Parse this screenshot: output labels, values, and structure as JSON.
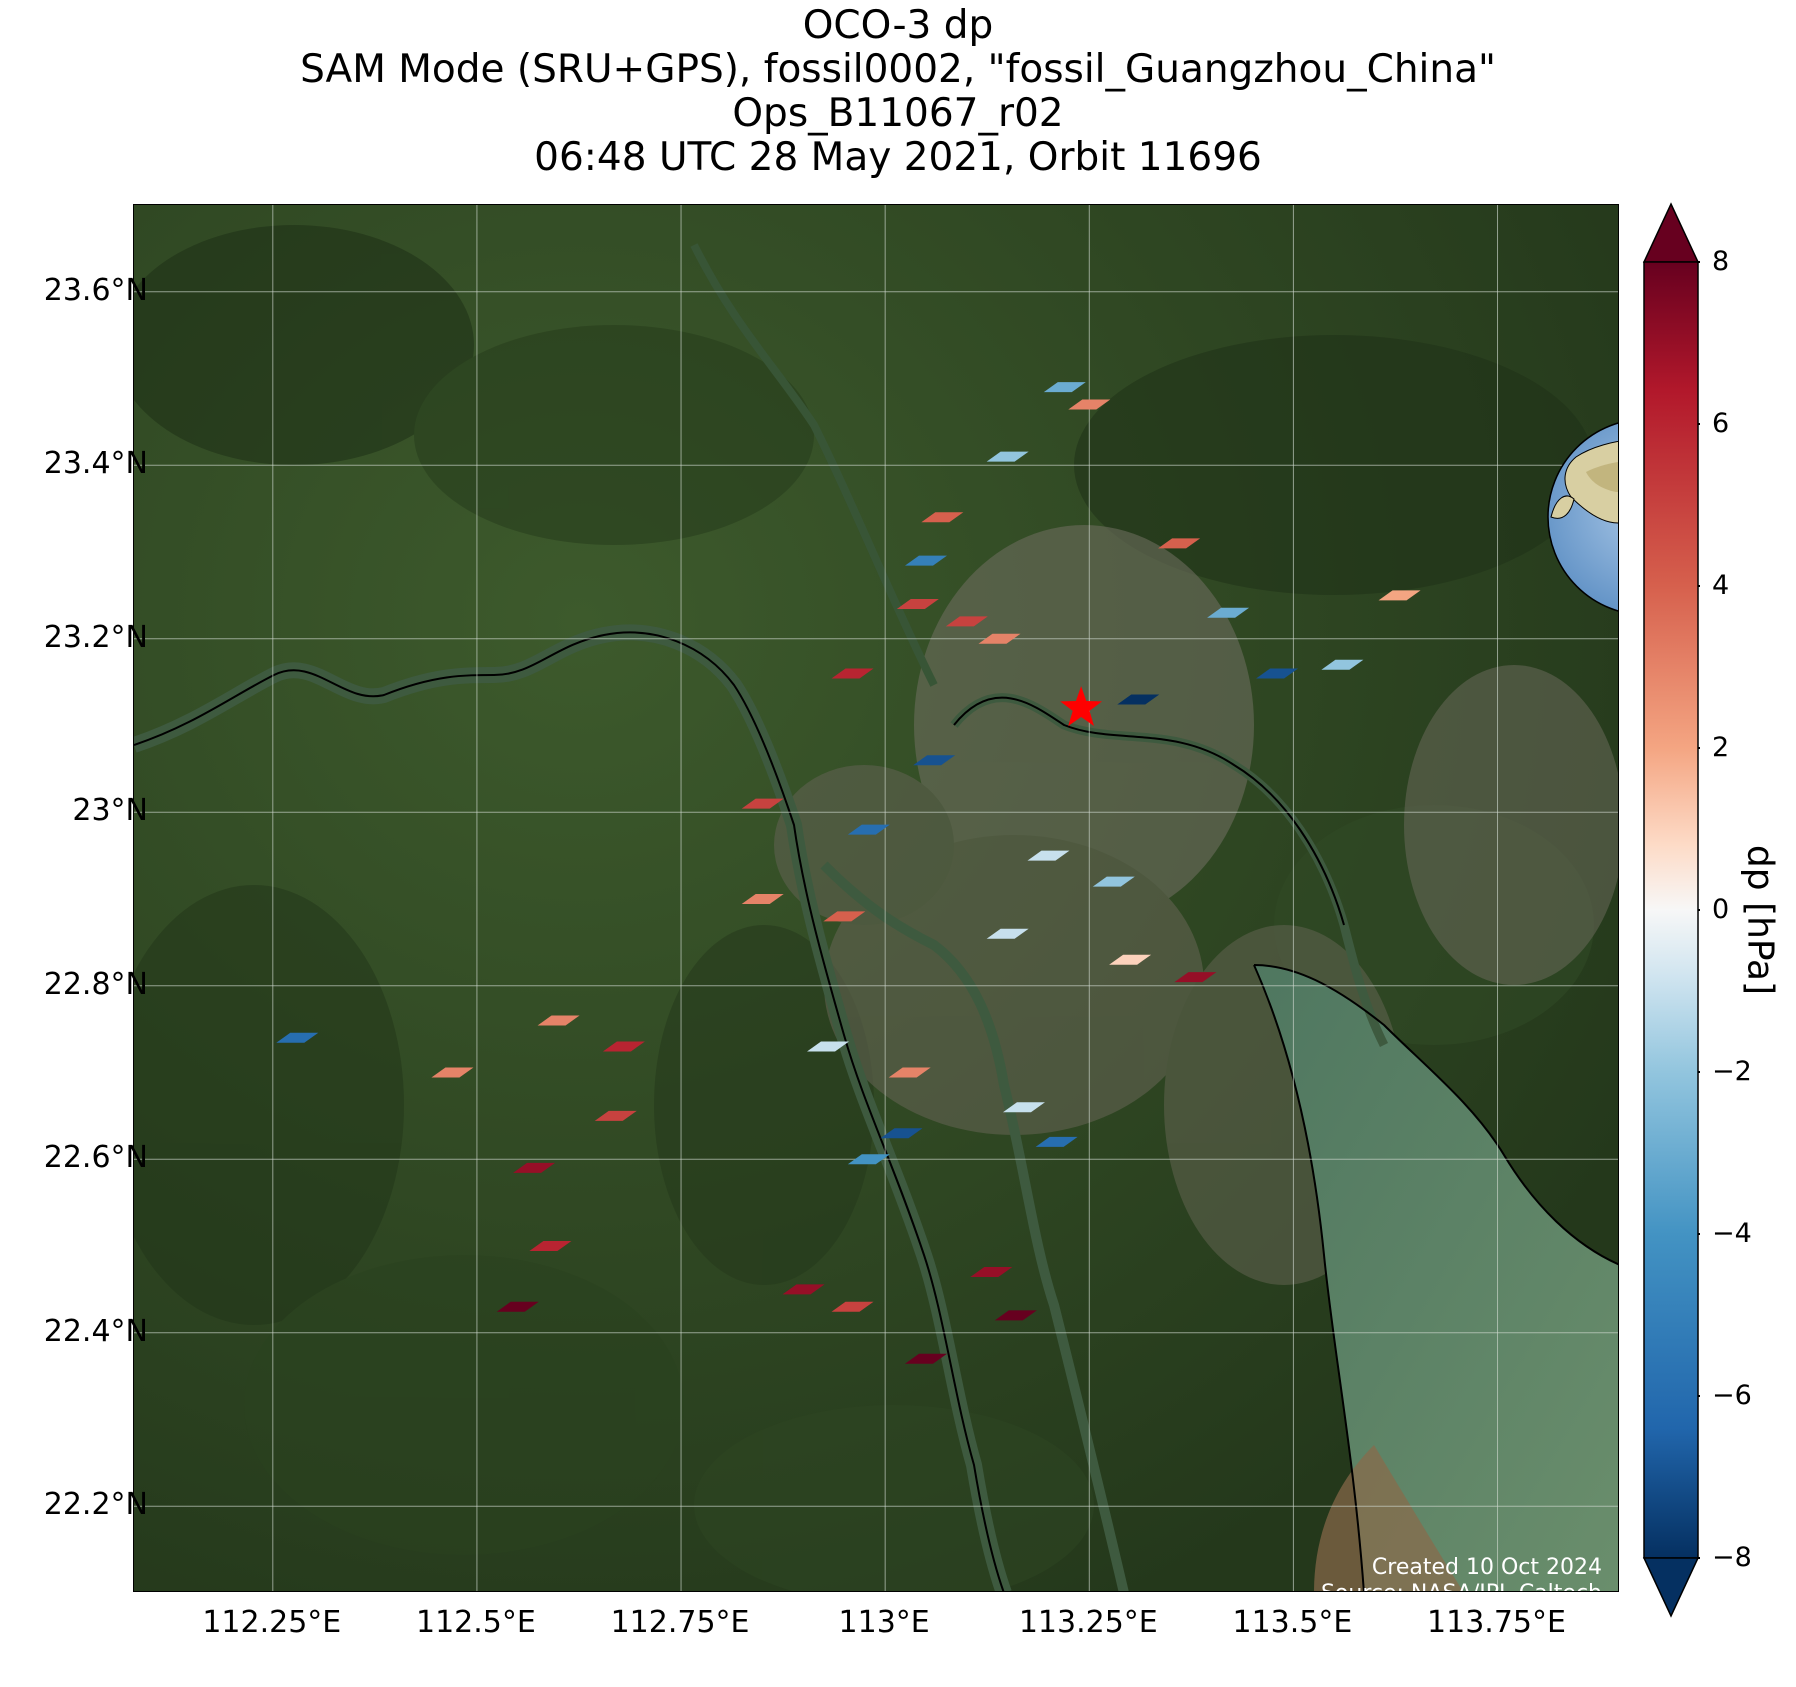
{
  "title": {
    "line1": "OCO-3 dp",
    "line2": "SAM Mode (SRU+GPS), fossil0002, \"fossil_Guangzhou_China\"",
    "line3": "Ops_B11067_r02",
    "line4": "06:48 UTC 28 May 2021, Orbit 11696"
  },
  "map": {
    "lon_range": [
      112.08,
      113.9
    ],
    "lat_range": [
      22.1,
      23.7
    ],
    "lat_ticks": [
      {
        "value": 23.6,
        "label": "23.6°N"
      },
      {
        "value": 23.4,
        "label": "23.4°N"
      },
      {
        "value": 23.2,
        "label": "23.2°N"
      },
      {
        "value": 23.0,
        "label": "23°N"
      },
      {
        "value": 22.8,
        "label": "22.8°N"
      },
      {
        "value": 22.6,
        "label": "22.6°N"
      },
      {
        "value": 22.4,
        "label": "22.4°N"
      },
      {
        "value": 22.2,
        "label": "22.2°N"
      }
    ],
    "lon_ticks": [
      {
        "value": 112.25,
        "label": "112.25°E"
      },
      {
        "value": 112.5,
        "label": "112.5°E"
      },
      {
        "value": 112.75,
        "label": "112.75°E"
      },
      {
        "value": 113.0,
        "label": "113°E"
      },
      {
        "value": 113.25,
        "label": "113.25°E"
      },
      {
        "value": 113.5,
        "label": "113.5°E"
      },
      {
        "value": 113.75,
        "label": "113.75°E"
      }
    ],
    "target_marker": {
      "lon": 113.24,
      "lat": 23.12,
      "color": "#ff0000"
    },
    "grid": true,
    "inset_globe": true,
    "background": "satellite imagery"
  },
  "credits": {
    "created": "Created 10 Oct 2024",
    "source": "Source: NASA/JPL-Caltech"
  },
  "colorbar": {
    "label": "dp [hPa]",
    "range": [
      -8,
      8
    ],
    "colormap": "RdBu_r",
    "extend": "both",
    "ticks": [
      {
        "value": 8,
        "label": "8"
      },
      {
        "value": 6,
        "label": "6"
      },
      {
        "value": 4,
        "label": "4"
      },
      {
        "value": 2,
        "label": "2"
      },
      {
        "value": 0,
        "label": "0"
      },
      {
        "value": -2,
        "label": "−2"
      },
      {
        "value": -4,
        "label": "−4"
      },
      {
        "value": -6,
        "label": "−6"
      },
      {
        "value": -8,
        "label": "−8"
      }
    ]
  },
  "chart_data": {
    "type": "scatter",
    "description_values": "approximate dp [hPa] at sample sounding footprints",
    "soundings": [
      {
        "lon": 113.22,
        "lat": 23.49,
        "dp": -3
      },
      {
        "lon": 113.25,
        "lat": 23.47,
        "dp": 3
      },
      {
        "lon": 113.15,
        "lat": 23.41,
        "dp": -2
      },
      {
        "lon": 113.07,
        "lat": 23.34,
        "dp": 4
      },
      {
        "lon": 113.05,
        "lat": 23.29,
        "dp": -5
      },
      {
        "lon": 113.04,
        "lat": 23.24,
        "dp": 5
      },
      {
        "lon": 113.1,
        "lat": 23.22,
        "dp": 5
      },
      {
        "lon": 113.14,
        "lat": 23.2,
        "dp": 3
      },
      {
        "lon": 113.36,
        "lat": 23.31,
        "dp": 4
      },
      {
        "lon": 113.42,
        "lat": 23.23,
        "dp": -3
      },
      {
        "lon": 113.63,
        "lat": 23.25,
        "dp": 2
      },
      {
        "lon": 113.56,
        "lat": 23.17,
        "dp": -2
      },
      {
        "lon": 113.48,
        "lat": 23.16,
        "dp": -7
      },
      {
        "lon": 112.96,
        "lat": 23.16,
        "dp": 6
      },
      {
        "lon": 113.31,
        "lat": 23.13,
        "dp": -8
      },
      {
        "lon": 113.06,
        "lat": 23.06,
        "dp": -7
      },
      {
        "lon": 112.85,
        "lat": 23.01,
        "dp": 5
      },
      {
        "lon": 112.98,
        "lat": 22.98,
        "dp": -6
      },
      {
        "lon": 113.2,
        "lat": 22.95,
        "dp": -1
      },
      {
        "lon": 113.28,
        "lat": 22.92,
        "dp": -2
      },
      {
        "lon": 112.85,
        "lat": 22.9,
        "dp": 3
      },
      {
        "lon": 112.95,
        "lat": 22.88,
        "dp": 4
      },
      {
        "lon": 113.15,
        "lat": 22.86,
        "dp": -1
      },
      {
        "lon": 113.3,
        "lat": 22.83,
        "dp": 1
      },
      {
        "lon": 113.38,
        "lat": 22.81,
        "dp": 7
      },
      {
        "lon": 112.6,
        "lat": 22.76,
        "dp": 3
      },
      {
        "lon": 112.68,
        "lat": 22.73,
        "dp": 6
      },
      {
        "lon": 112.47,
        "lat": 22.7,
        "dp": 3
      },
      {
        "lon": 112.28,
        "lat": 22.74,
        "dp": -6
      },
      {
        "lon": 112.93,
        "lat": 22.73,
        "dp": -1
      },
      {
        "lon": 113.03,
        "lat": 22.7,
        "dp": 3
      },
      {
        "lon": 113.02,
        "lat": 22.63,
        "dp": -7
      },
      {
        "lon": 112.98,
        "lat": 22.6,
        "dp": -4
      },
      {
        "lon": 113.17,
        "lat": 22.66,
        "dp": -1
      },
      {
        "lon": 113.21,
        "lat": 22.62,
        "dp": -6
      },
      {
        "lon": 112.67,
        "lat": 22.65,
        "dp": 5
      },
      {
        "lon": 112.57,
        "lat": 22.59,
        "dp": 7
      },
      {
        "lon": 112.59,
        "lat": 22.5,
        "dp": 6
      },
      {
        "lon": 112.55,
        "lat": 22.43,
        "dp": 8
      },
      {
        "lon": 113.13,
        "lat": 22.47,
        "dp": 7
      },
      {
        "lon": 113.16,
        "lat": 22.42,
        "dp": 8
      },
      {
        "lon": 112.96,
        "lat": 22.43,
        "dp": 5
      },
      {
        "lon": 112.9,
        "lat": 22.45,
        "dp": 7
      },
      {
        "lon": 113.05,
        "lat": 22.37,
        "dp": 8
      }
    ]
  }
}
